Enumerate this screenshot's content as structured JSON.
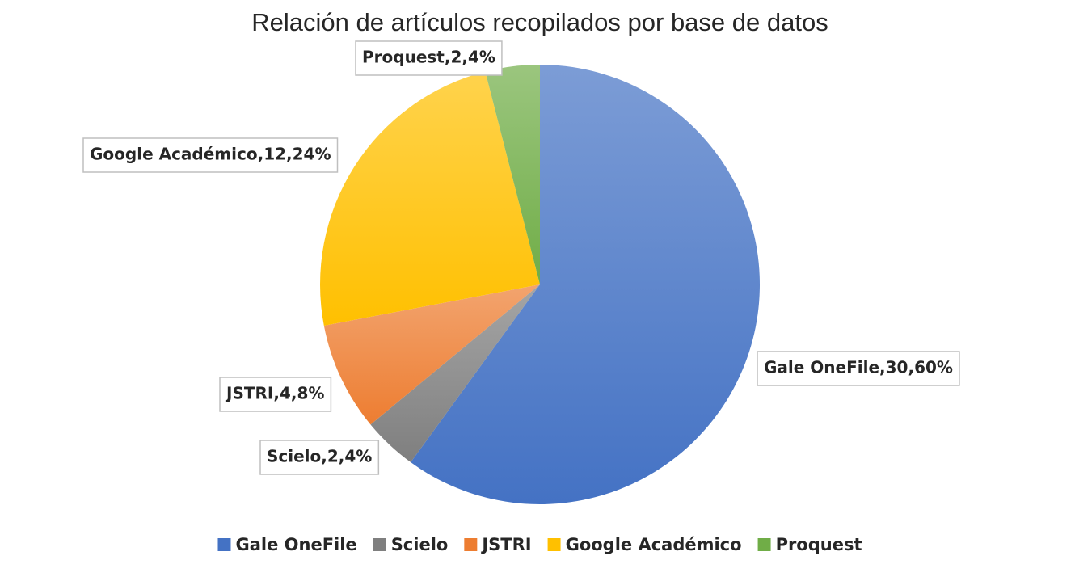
{
  "chart_data": {
    "type": "pie",
    "title": "Relación de artículos recopilados por base de datos",
    "categories": [
      "Gale OneFile",
      "Scielo",
      "JSTRI",
      "Google Académico",
      "Proquest"
    ],
    "values": [
      30,
      2,
      4,
      12,
      2
    ],
    "value_labels": [
      "Gale OneFile,30,60%",
      "Scielo,2,4%",
      "JSTRI,4,8%",
      "Google Académico,12,24%",
      "Proquest,2,4%"
    ],
    "colors": [
      "#4472c4",
      "#7f7f7f",
      "#ed7d31",
      "#ffc000",
      "#70ad47"
    ],
    "legend": "bottom"
  }
}
